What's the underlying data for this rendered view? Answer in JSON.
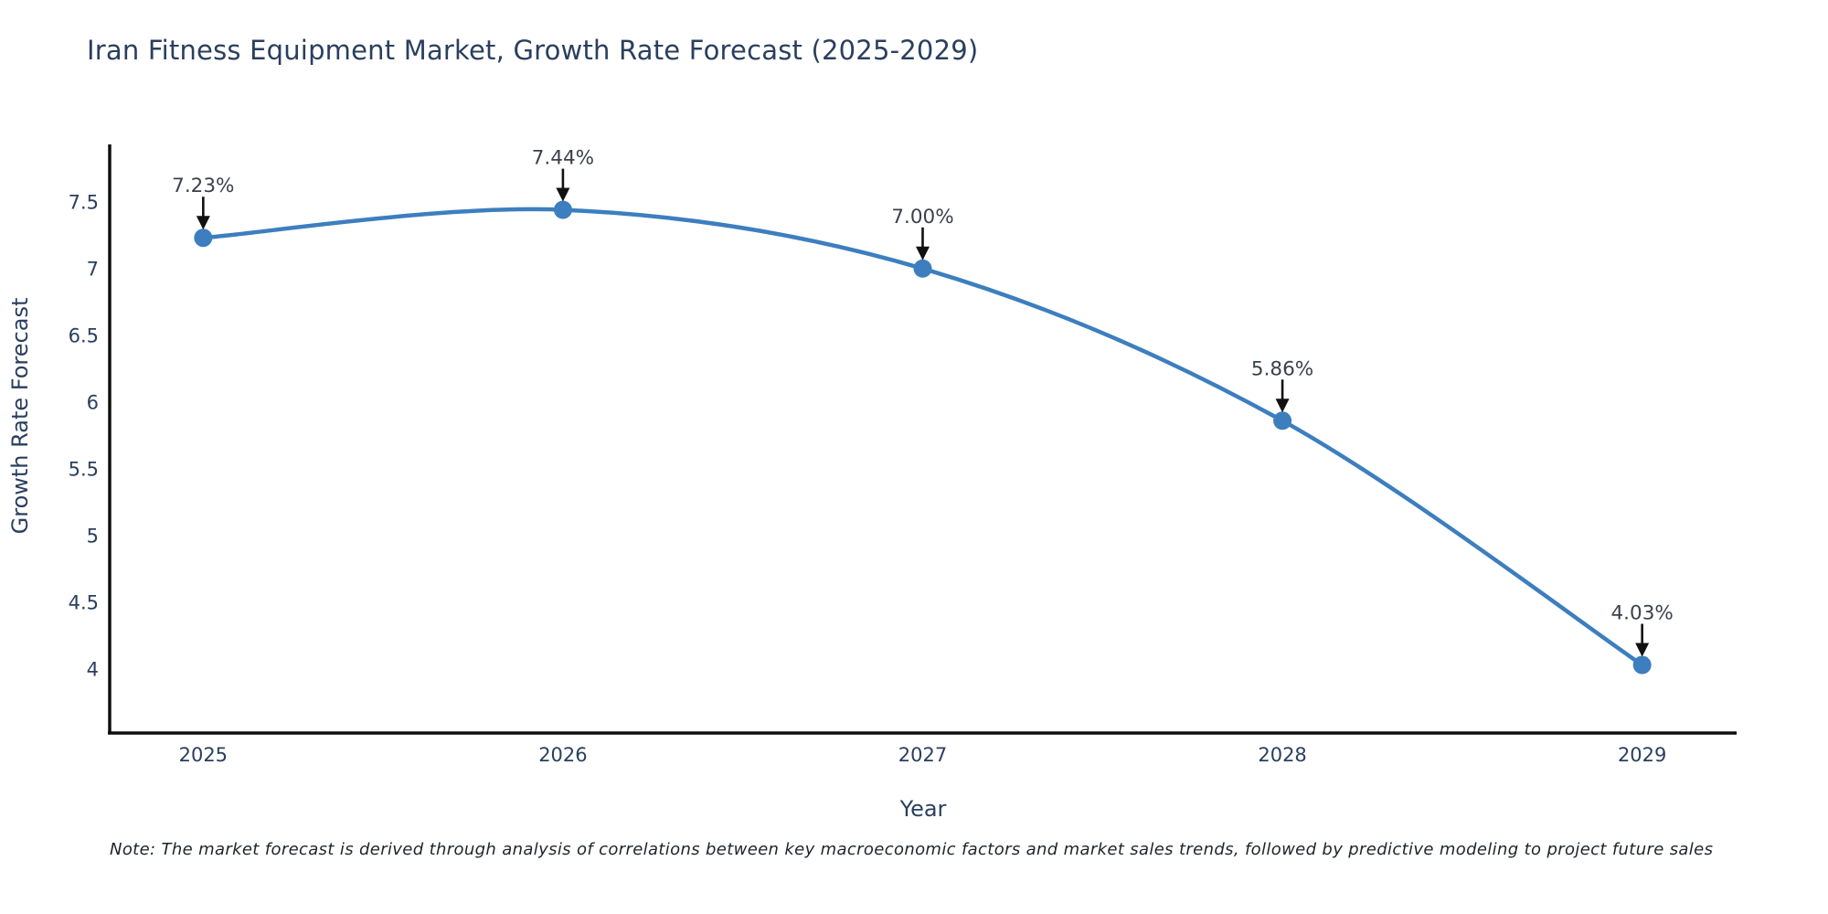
{
  "title": "Iran Fitness Equipment Market, Growth Rate Forecast (2025-2029)",
  "note": "Note: The market forecast is derived through analysis of correlations between key macroeconomic factors and market sales trends, followed by predictive modeling to project future sales",
  "chart_data": {
    "type": "line",
    "title": "Iran Fitness Equipment Market, Growth Rate Forecast (2025-2029)",
    "xlabel": "Year",
    "ylabel": "Growth Rate Forecast",
    "x": [
      2025,
      2026,
      2027,
      2028,
      2029
    ],
    "series": [
      {
        "name": "Growth Rate Forecast",
        "values": [
          7.23,
          7.44,
          7.0,
          5.86,
          4.03
        ]
      }
    ],
    "point_labels": [
      "7.23%",
      "7.44%",
      "7.00%",
      "5.86%",
      "4.03%"
    ],
    "x_tick_labels": [
      "2025",
      "2026",
      "2027",
      "2028",
      "2029"
    ],
    "y_tick_values": [
      4,
      4.5,
      5,
      5.5,
      6,
      6.5,
      7,
      7.5
    ],
    "xlim": [
      2024.74,
      2029.26
    ],
    "ylim": [
      3.52,
      7.93
    ],
    "grid": false,
    "legend_position": "none",
    "line_shape": "spline",
    "colors": {
      "line": "#3d7ebf",
      "marker": "#3d7ebf",
      "annotation_text": "#3c414a",
      "annotation_arrow": "#111111",
      "axis_line": "#0f0f0f",
      "tick_label": "#2a3f5f",
      "axis_title": "#2a3f5f",
      "title": "#2a3f5f",
      "background": "#ffffff"
    }
  }
}
